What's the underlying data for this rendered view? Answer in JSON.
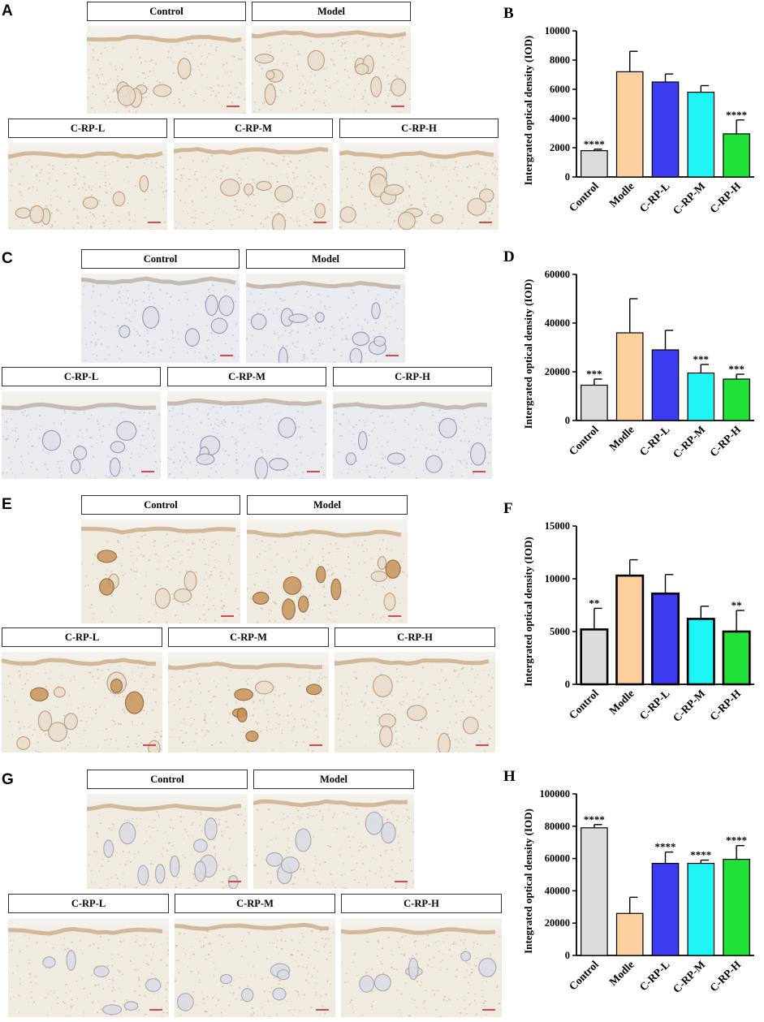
{
  "panels": {
    "A": {
      "letter": "A",
      "labels": [
        "Control",
        "Model",
        "C-RP-L",
        "C-RP-M",
        "C-RP-H"
      ],
      "stain": "dab"
    },
    "C": {
      "letter": "C",
      "labels": [
        "Control",
        "Model",
        "C-RP-L",
        "C-RP-M",
        "C-RP-H"
      ],
      "stain": "hema"
    },
    "E": {
      "letter": "E",
      "labels": [
        "Control",
        "Model",
        "C-RP-L",
        "C-RP-M",
        "C-RP-H"
      ],
      "stain": "dab-strong"
    },
    "G": {
      "letter": "G",
      "labels": [
        "Control",
        "Model",
        "C-RP-L",
        "C-RP-M",
        "C-RP-H"
      ],
      "stain": "dab-light"
    }
  },
  "colors": {
    "control": "#dcdcdc",
    "model": "#fbcf9e",
    "low": "#3b3bf2",
    "mid": "#1ff5f5",
    "high": "#22e23a"
  },
  "chart_data": [
    {
      "panel": "B",
      "type": "bar",
      "ylabel": "Intergrated optical density (IOD)",
      "categories": [
        "Control",
        "Modle",
        "C-RP-L",
        "C-RP-M",
        "C-RP-H"
      ],
      "values": [
        1800,
        7200,
        6500,
        5800,
        2950
      ],
      "errors": [
        100,
        1400,
        550,
        450,
        950
      ],
      "significance": [
        "****",
        "",
        "",
        "",
        "****"
      ],
      "ylim": [
        0,
        10000
      ],
      "yticks": [
        "0",
        "2000",
        "4000",
        "6000",
        "8000",
        "10000"
      ],
      "thick_outline": false
    },
    {
      "panel": "D",
      "type": "bar",
      "ylabel": "Intergrated optical density (IOD)",
      "categories": [
        "Control",
        "Modle",
        "C-RP-L",
        "C-RP-M",
        "C-RP-H"
      ],
      "values": [
        14500,
        36000,
        29000,
        19500,
        17000
      ],
      "errors": [
        2500,
        14000,
        8000,
        3500,
        2000
      ],
      "significance": [
        "***",
        "",
        "",
        "***",
        "***"
      ],
      "ylim": [
        0,
        60000
      ],
      "yticks": [
        "0",
        "20000",
        "40000",
        "60000"
      ],
      "thick_outline": false
    },
    {
      "panel": "F",
      "type": "bar",
      "ylabel": "Intergrated optical density (IOD)",
      "categories": [
        "Control",
        "Modle",
        "C-RP-L",
        "C-RP-M",
        "C-RP-H"
      ],
      "values": [
        5200,
        10300,
        8600,
        6200,
        5000
      ],
      "errors": [
        2000,
        1500,
        1800,
        1200,
        2000
      ],
      "significance": [
        "**",
        "",
        "",
        "",
        "**"
      ],
      "ylim": [
        0,
        15000
      ],
      "yticks": [
        "0",
        "5000",
        "10000",
        "15000"
      ],
      "thick_outline": true
    },
    {
      "panel": "H",
      "type": "bar",
      "ylabel": "Integrated optical density (IOD)",
      "categories": [
        "Control",
        "Modle",
        "C-RP-L",
        "C-RP-M",
        "C-RP-H"
      ],
      "values": [
        79000,
        26000,
        57000,
        57000,
        59500
      ],
      "errors": [
        2000,
        10000,
        7000,
        2000,
        8500
      ],
      "significance": [
        "****",
        "",
        "****",
        "****",
        "****"
      ],
      "ylim": [
        0,
        100000
      ],
      "yticks": [
        "0",
        "20000",
        "40000",
        "60000",
        "80000",
        "100000"
      ],
      "thick_outline": false
    }
  ]
}
